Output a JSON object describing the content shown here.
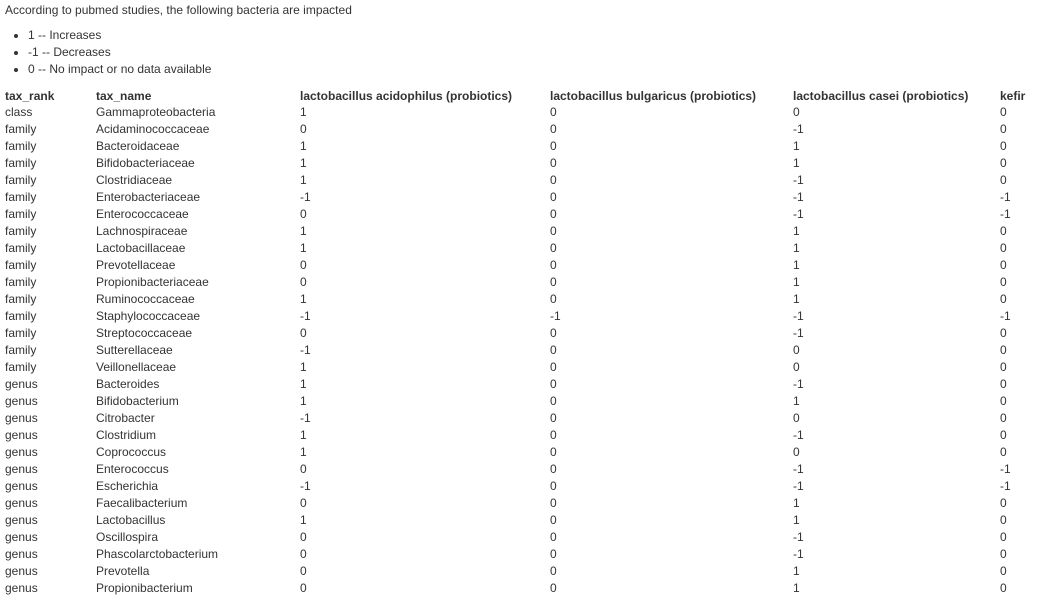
{
  "intro": "According to pubmed studies, the following bacteria are impacted",
  "legend": [
    "1 -- Increases",
    "-1 -- Decreases",
    "0 -- No impact or no data available"
  ],
  "table": {
    "headers": [
      "tax_rank",
      "tax_name",
      "lactobacillus acidophilus (probiotics)",
      "lactobacillus bulgaricus (probiotics)",
      "lactobacillus casei (probiotics)",
      "kefir"
    ],
    "rows": [
      [
        "class",
        "Gammaproteobacteria",
        "1",
        "0",
        "0",
        "0"
      ],
      [
        "family",
        "Acidaminococcaceae",
        "0",
        "0",
        "-1",
        "0"
      ],
      [
        "family",
        "Bacteroidaceae",
        "1",
        "0",
        "1",
        "0"
      ],
      [
        "family",
        "Bifidobacteriaceae",
        "1",
        "0",
        "1",
        "0"
      ],
      [
        "family",
        "Clostridiaceae",
        "1",
        "0",
        "-1",
        "0"
      ],
      [
        "family",
        "Enterobacteriaceae",
        "-1",
        "0",
        "-1",
        "-1"
      ],
      [
        "family",
        "Enterococcaceae",
        "0",
        "0",
        "-1",
        "-1"
      ],
      [
        "family",
        "Lachnospiraceae",
        "1",
        "0",
        "1",
        "0"
      ],
      [
        "family",
        "Lactobacillaceae",
        "1",
        "0",
        "1",
        "0"
      ],
      [
        "family",
        "Prevotellaceae",
        "0",
        "0",
        "1",
        "0"
      ],
      [
        "family",
        "Propionibacteriaceae",
        "0",
        "0",
        "1",
        "0"
      ],
      [
        "family",
        "Ruminococcaceae",
        "1",
        "0",
        "1",
        "0"
      ],
      [
        "family",
        "Staphylococcaceae",
        "-1",
        "-1",
        "-1",
        "-1"
      ],
      [
        "family",
        "Streptococcaceae",
        "0",
        "0",
        "-1",
        "0"
      ],
      [
        "family",
        "Sutterellaceae",
        "-1",
        "0",
        "0",
        "0"
      ],
      [
        "family",
        "Veillonellaceae",
        "1",
        "0",
        "0",
        "0"
      ],
      [
        "genus",
        "Bacteroides",
        "1",
        "0",
        "-1",
        "0"
      ],
      [
        "genus",
        "Bifidobacterium",
        "1",
        "0",
        "1",
        "0"
      ],
      [
        "genus",
        "Citrobacter",
        "-1",
        "0",
        "0",
        "0"
      ],
      [
        "genus",
        "Clostridium",
        "1",
        "0",
        "-1",
        "0"
      ],
      [
        "genus",
        "Coprococcus",
        "1",
        "0",
        "0",
        "0"
      ],
      [
        "genus",
        "Enterococcus",
        "0",
        "0",
        "-1",
        "-1"
      ],
      [
        "genus",
        "Escherichia",
        "-1",
        "0",
        "-1",
        "-1"
      ],
      [
        "genus",
        "Faecalibacterium",
        "0",
        "0",
        "1",
        "0"
      ],
      [
        "genus",
        "Lactobacillus",
        "1",
        "0",
        "1",
        "0"
      ],
      [
        "genus",
        "Oscillospira",
        "0",
        "0",
        "-1",
        "0"
      ],
      [
        "genus",
        "Phascolarctobacterium",
        "0",
        "0",
        "-1",
        "0"
      ],
      [
        "genus",
        "Prevotella",
        "0",
        "0",
        "1",
        "0"
      ],
      [
        "genus",
        "Propionibacterium",
        "0",
        "0",
        "1",
        "0"
      ]
    ]
  }
}
